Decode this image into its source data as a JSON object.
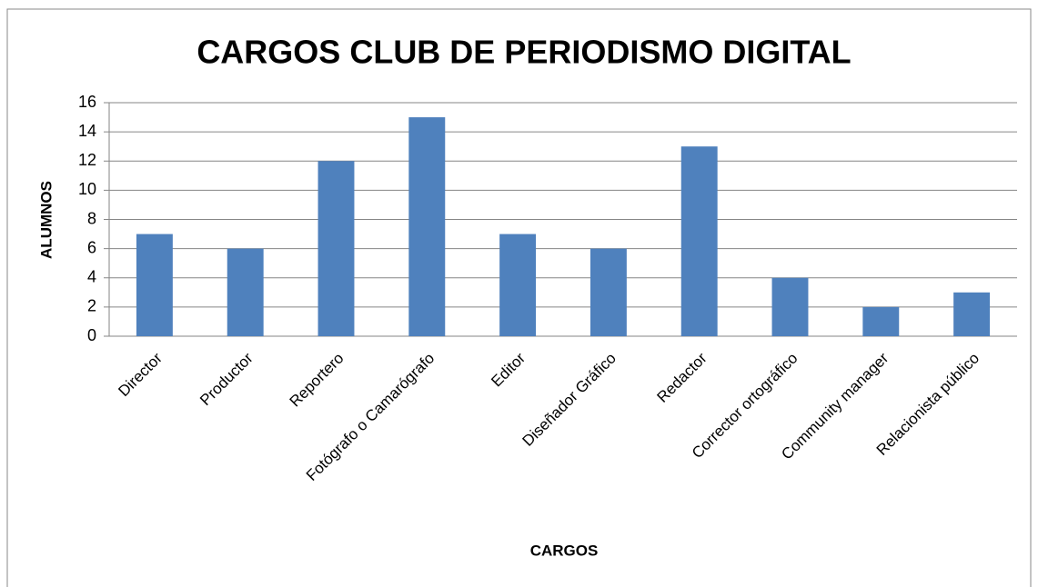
{
  "chart_data": {
    "type": "bar",
    "title": "CARGOS CLUB DE PERIODISMO DIGITAL",
    "x_label": "CARGOS",
    "y_label": "ALUMNOS",
    "categories": [
      "Director",
      "Productor",
      "Reportero",
      "Fotógrafo o Camarógrafo",
      "Editor",
      "Diseñador Gráfico",
      "Redactor",
      "Corrector ortográfico",
      "Community manager",
      "Relacionista público"
    ],
    "values": [
      7,
      6,
      12,
      15,
      7,
      6,
      13,
      4,
      2,
      3
    ],
    "color": "#4f81bd",
    "ylim": [
      0,
      16
    ],
    "yticks": [
      0,
      2,
      4,
      6,
      8,
      10,
      12,
      14,
      16
    ],
    "grid": true
  }
}
